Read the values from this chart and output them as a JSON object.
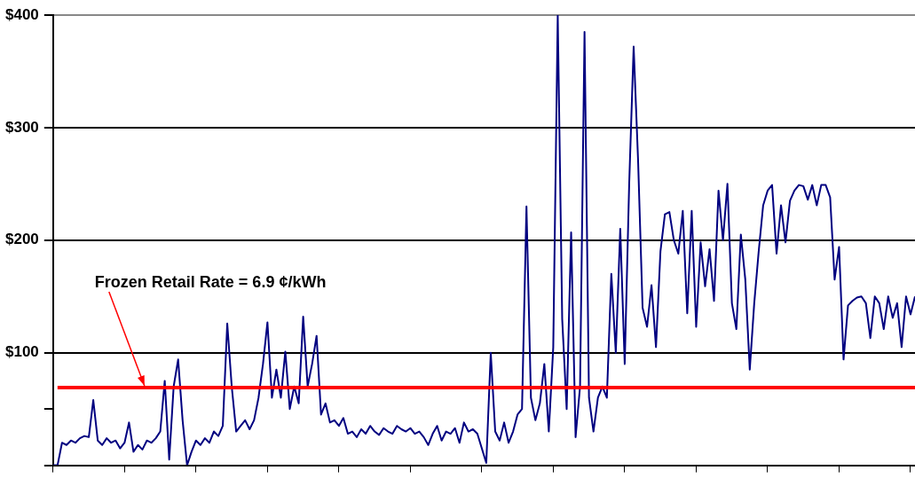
{
  "chart_data": {
    "type": "line",
    "categories": [
      null,
      null,
      null,
      null,
      null,
      null,
      null,
      null,
      null,
      null,
      null,
      null,
      null,
      null,
      null,
      null,
      null,
      null,
      null,
      null,
      null,
      null,
      null,
      null,
      null,
      null,
      null,
      null,
      null,
      null,
      null,
      null,
      null,
      null,
      null,
      null,
      null,
      null,
      null,
      null,
      null,
      null,
      null,
      null,
      null,
      null,
      null,
      null,
      null,
      null,
      null,
      null,
      null,
      null,
      null,
      null,
      null,
      null,
      null,
      null,
      null,
      null,
      null,
      null,
      null,
      null,
      null,
      null,
      null,
      null,
      null,
      null,
      null,
      null,
      null,
      null,
      null,
      null,
      null,
      null,
      null,
      null,
      null,
      null,
      null,
      null,
      null,
      null,
      null,
      null,
      null,
      null,
      null,
      null,
      null,
      null,
      null,
      null,
      null,
      null,
      null,
      null,
      null,
      null,
      null,
      null,
      null,
      null,
      null,
      null,
      null,
      null,
      null,
      null,
      null,
      null,
      null,
      null,
      null,
      null,
      null,
      null,
      null,
      null,
      null,
      null,
      null,
      null,
      null,
      null,
      null,
      null,
      null,
      null,
      null,
      null,
      null,
      null,
      null,
      null,
      null,
      null,
      null,
      null,
      null,
      null,
      null,
      null,
      null,
      null,
      null,
      null,
      null,
      null,
      null,
      null,
      null,
      null,
      null,
      null,
      null,
      null,
      null,
      null,
      null,
      null,
      null,
      null,
      null,
      null,
      null,
      null,
      null,
      null,
      null,
      null,
      null,
      null,
      null,
      null,
      null,
      null,
      null,
      null,
      null,
      null,
      null,
      null,
      null,
      null,
      null,
      null,
      null,
      null
    ],
    "series": [
      {
        "color": "#000080",
        "values": [
          0,
          0,
          20,
          18,
          22,
          20,
          24,
          26,
          25,
          58,
          22,
          18,
          24,
          20,
          22,
          15,
          20,
          38,
          12,
          18,
          14,
          22,
          20,
          24,
          30,
          75,
          5,
          70,
          94,
          40,
          0,
          12,
          22,
          18,
          24,
          20,
          30,
          26,
          35,
          126,
          70,
          30,
          35,
          40,
          32,
          40,
          60,
          90,
          127,
          60,
          85,
          60,
          101,
          50,
          70,
          55,
          132,
          70,
          90,
          115,
          45,
          55,
          38,
          40,
          35,
          42,
          28,
          30,
          25,
          32,
          28,
          35,
          30,
          27,
          33,
          30,
          28,
          35,
          32,
          30,
          33,
          28,
          30,
          25,
          18,
          28,
          35,
          22,
          30,
          28,
          33,
          20,
          38,
          30,
          32,
          28,
          15,
          2,
          100,
          30,
          22,
          38,
          20,
          30,
          45,
          50,
          230,
          60,
          40,
          55,
          90,
          30,
          105,
          400,
          130,
          50,
          207,
          25,
          70,
          385,
          60,
          30,
          60,
          70,
          60,
          170,
          100,
          210,
          90,
          250,
          372,
          270,
          140,
          123,
          160,
          105,
          190,
          223,
          225,
          200,
          188,
          226,
          135,
          226,
          123,
          198,
          159,
          192,
          146,
          244,
          200,
          250,
          144,
          121,
          205,
          165,
          85,
          144,
          190,
          231,
          244,
          249,
          188,
          231,
          198,
          235,
          244,
          249,
          248,
          236,
          249,
          231,
          249,
          249,
          238,
          165,
          194,
          94,
          142,
          146,
          149,
          150,
          144,
          113,
          150,
          144,
          121,
          150,
          131,
          144,
          105,
          150,
          134,
          150
        ]
      }
    ],
    "ylim": [
      0,
      400
    ],
    "yticks": [
      {
        "value": 0,
        "label": null
      },
      {
        "value": 50,
        "label": null
      },
      {
        "value": 100,
        "label": "$100"
      },
      {
        "value": 200,
        "label": "$200"
      },
      {
        "value": 300,
        "label": "$300"
      },
      {
        "value": 400,
        "label": "$400"
      }
    ],
    "grid": "y",
    "marker": "none",
    "line_style": "solid",
    "ref_lines": [
      {
        "axis": "y",
        "value": 69,
        "color": "#ff0000",
        "line_style": "solid"
      }
    ],
    "annotations": [
      "Frozen Retail Rate = 6.9 ¢/kWh"
    ]
  }
}
